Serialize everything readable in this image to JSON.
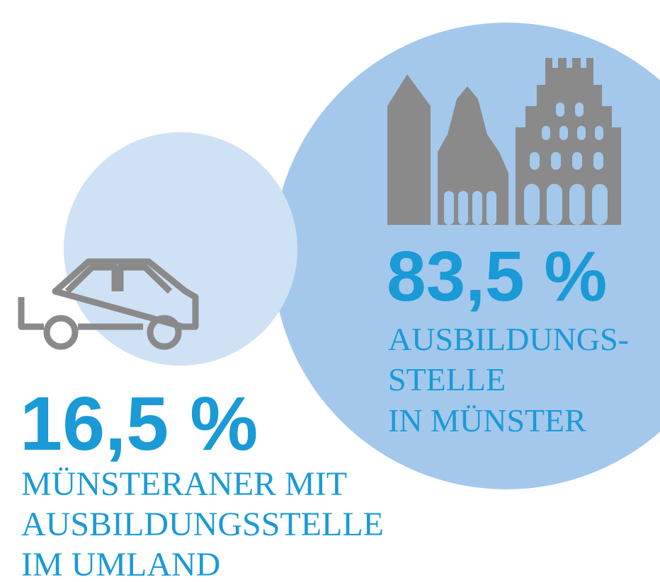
{
  "stats": [
    {
      "value": "83,5 %",
      "lines": [
        "AUSBILDUNGS-",
        "STELLE",
        "IN MÜNSTER"
      ]
    },
    {
      "value": "16,5 %",
      "lines": [
        "MÜNSTERANER MIT",
        "AUSBILDUNGSSTELLE",
        "IM UMLAND"
      ]
    }
  ]
}
